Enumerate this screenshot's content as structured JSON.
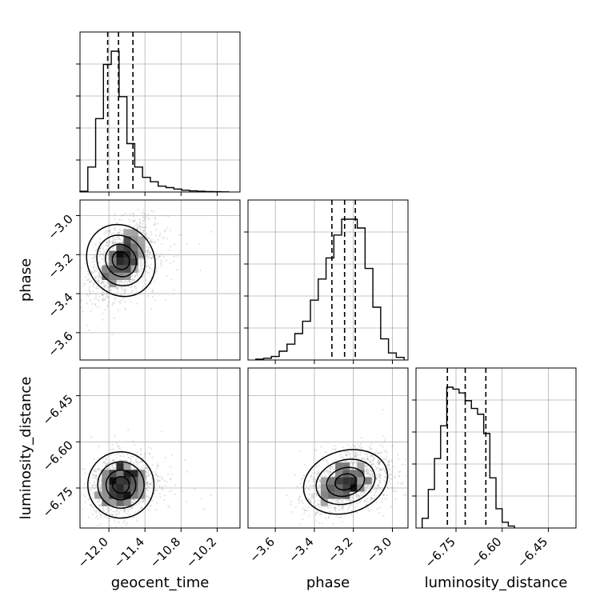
{
  "chart_data": {
    "type": "corner",
    "parameters": [
      "geocent_time",
      "phase",
      "luminosity_distance"
    ],
    "axis_labels": {
      "geocent_time": "geocent_time",
      "phase": "phase",
      "luminosity_distance": "luminosity_distance"
    },
    "ranges": {
      "geocent_time": [
        -12.48,
        -9.82
      ],
      "phase": [
        -3.74,
        -2.92
      ],
      "luminosity_distance": [
        -6.88,
        -6.36
      ]
    },
    "ticks": {
      "geocent_time": {
        "values": [
          -12.0,
          -11.4,
          -10.8,
          -10.2
        ],
        "labels": [
          "−12.0",
          "−11.4",
          "−10.8",
          "−10.2"
        ]
      },
      "phase": {
        "values": [
          -3.6,
          -3.4,
          -3.2,
          -3.0
        ],
        "labels": [
          "−3.6",
          "−3.4",
          "−3.2",
          "−3.0"
        ]
      },
      "luminosity_distance": {
        "values": [
          -6.75,
          -6.6,
          -6.45
        ],
        "labels": [
          "−6.75",
          "−6.60",
          "−6.45"
        ]
      }
    },
    "quantiles": {
      "geocent_time": [
        -12.02,
        -11.84,
        -11.6
      ],
      "phase": [
        -3.31,
        -3.245,
        -3.19
      ],
      "luminosity_distance": [
        -6.778,
        -6.72,
        -6.653
      ]
    },
    "histograms": {
      "geocent_time": {
        "bin_edges": [
          -12.48,
          -12.35,
          -12.22,
          -12.09,
          -11.96,
          -11.83,
          -11.7,
          -11.57,
          -11.44,
          -11.31,
          -11.18,
          -11.05,
          -10.92,
          -10.79,
          -10.66,
          -10.53,
          -10.4,
          -10.27,
          -10.14,
          -10.01
        ],
        "counts": [
          0.005,
          0.17,
          0.5,
          0.87,
          0.96,
          0.65,
          0.33,
          0.17,
          0.1,
          0.07,
          0.04,
          0.03,
          0.02,
          0.012,
          0.008,
          0.005,
          0.003,
          0.002,
          0.001
        ]
      },
      "phase": {
        "bin_edges": [
          -3.7,
          -3.66,
          -3.62,
          -3.58,
          -3.54,
          -3.5,
          -3.46,
          -3.42,
          -3.38,
          -3.34,
          -3.3,
          -3.26,
          -3.22,
          -3.18,
          -3.14,
          -3.1,
          -3.06,
          -3.02,
          -2.98,
          -2.94
        ],
        "counts": [
          0.005,
          0.01,
          0.02,
          0.05,
          0.09,
          0.15,
          0.22,
          0.34,
          0.46,
          0.58,
          0.71,
          0.8,
          0.8,
          0.75,
          0.52,
          0.3,
          0.12,
          0.04,
          0.015
        ]
      },
      "luminosity_distance": {
        "bin_edges": [
          -6.86,
          -6.84,
          -6.82,
          -6.8,
          -6.78,
          -6.76,
          -6.74,
          -6.72,
          -6.7,
          -6.68,
          -6.66,
          -6.64,
          -6.62,
          -6.6,
          -6.58,
          -6.56
        ],
        "counts": [
          0.05,
          0.2,
          0.36,
          0.53,
          0.73,
          0.72,
          0.7,
          0.66,
          0.62,
          0.59,
          0.49,
          0.26,
          0.1,
          0.03,
          0.01
        ]
      }
    },
    "scatter_2d": [
      {
        "x": "geocent_time",
        "y": "phase",
        "center": [
          -11.8,
          -3.23
        ],
        "spread": [
          0.25,
          0.1
        ],
        "correlation": 0.5
      },
      {
        "x": "geocent_time",
        "y": "luminosity_distance",
        "center": [
          -11.8,
          -6.74
        ],
        "spread": [
          0.25,
          0.05
        ],
        "correlation": 0.2
      },
      {
        "x": "phase",
        "y": "luminosity_distance",
        "center": [
          -3.24,
          -6.73
        ],
        "spread": [
          0.1,
          0.05
        ],
        "correlation": 0.4
      }
    ],
    "grid": true,
    "colors": {
      "line": "#000000",
      "grid": "#b0b0b0",
      "points": "#808080"
    }
  }
}
